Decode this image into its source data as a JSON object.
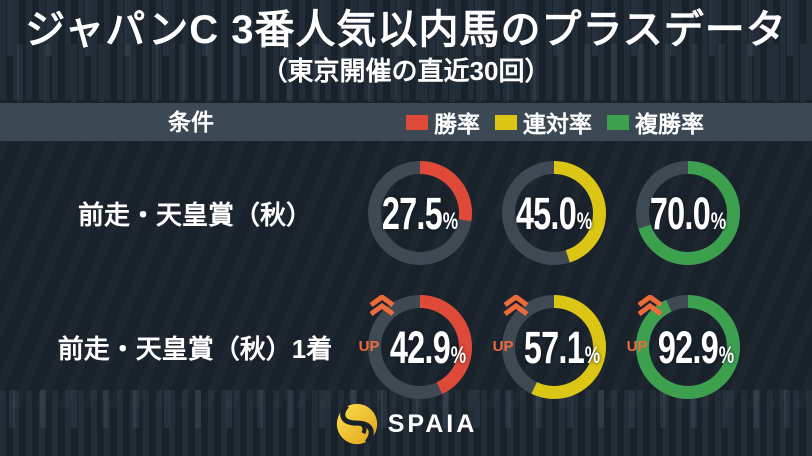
{
  "title": "ジャパンC 3番人気以内馬のプラスデータ",
  "subtitle": "（東京開催の直近30回）",
  "condition_label": "条件",
  "unit": "%",
  "up_label": "UP",
  "legend": [
    {
      "label": "勝率",
      "color": "#df4a38"
    },
    {
      "label": "連対率",
      "color": "#dcc615"
    },
    {
      "label": "複勝率",
      "color": "#3da04f"
    }
  ],
  "colors": {
    "background": "#19212b",
    "band": "#3c4954",
    "track": "#3e4954",
    "up_orange": "#ee6a3a",
    "logo_gold_light": "#ffe04d",
    "logo_gold_dark": "#dfa31b"
  },
  "rows": [
    {
      "label": "前走・天皇賞（秋）",
      "values": [
        {
          "num": "27.5",
          "pct": 27.5,
          "color": "#df4a38",
          "up": false
        },
        {
          "num": "45.0",
          "pct": 45.0,
          "color": "#dcc615",
          "up": false
        },
        {
          "num": "70.0",
          "pct": 70.0,
          "color": "#3da04f",
          "up": false
        }
      ]
    },
    {
      "label": "前走・天皇賞（秋）1着",
      "values": [
        {
          "num": "42.9",
          "pct": 42.9,
          "color": "#df4a38",
          "up": true
        },
        {
          "num": "57.1",
          "pct": 57.1,
          "color": "#dcc615",
          "up": true
        },
        {
          "num": "92.9",
          "pct": 92.9,
          "color": "#3da04f",
          "up": true
        }
      ]
    }
  ],
  "footer": {
    "brand": "SPAIA"
  },
  "chart_data": {
    "type": "pie",
    "subtype": "donut-grid",
    "title": "ジャパンC 3番人気以内馬のプラスデータ",
    "subtitle": "（東京開催の直近30回）",
    "categories": [
      "勝率",
      "連対率",
      "複勝率"
    ],
    "series": [
      {
        "name": "前走・天皇賞（秋）",
        "values": [
          27.5,
          45.0,
          70.0
        ],
        "up_marker": false
      },
      {
        "name": "前走・天皇賞（秋）1着",
        "values": [
          42.9,
          57.1,
          92.9
        ],
        "up_marker": true
      }
    ],
    "unit": "%",
    "value_range": [
      0,
      100
    ],
    "colors": [
      "#df4a38",
      "#dcc615",
      "#3da04f"
    ],
    "legend_position": "top",
    "arc_start": "12-oclock-clockwise"
  }
}
